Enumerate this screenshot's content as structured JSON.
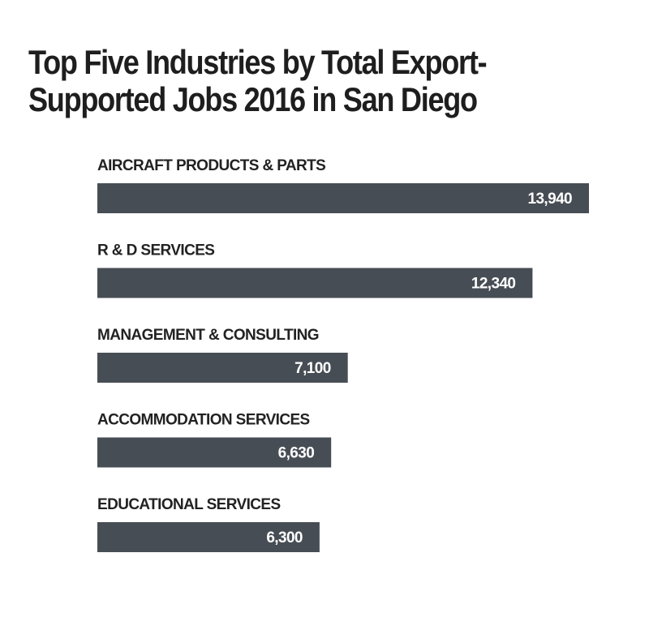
{
  "title_lines": [
    "Top Five Industries by Total Export-",
    "Supported Jobs 2016 in San Diego"
  ],
  "chart_data": {
    "type": "bar",
    "orientation": "horizontal",
    "title": "Top Five Industries by Total Export-Supported Jobs 2016 in San Diego",
    "categories": [
      "AIRCRAFT PRODUCTS & PARTS",
      "R & D SERVICES",
      "MANAGEMENT & CONSULTING",
      "ACCOMMODATION SERVICES",
      "EDUCATIONAL SERVICES"
    ],
    "values": [
      13940,
      12340,
      7100,
      6630,
      6300
    ],
    "value_labels": [
      "13,940",
      "12,340",
      "7,100",
      "6,630",
      "6,300"
    ],
    "xlabel": "",
    "ylabel": "",
    "grid": false,
    "legend": "none",
    "bar_color": "#474d54",
    "value_label_color": "#ffffff"
  }
}
